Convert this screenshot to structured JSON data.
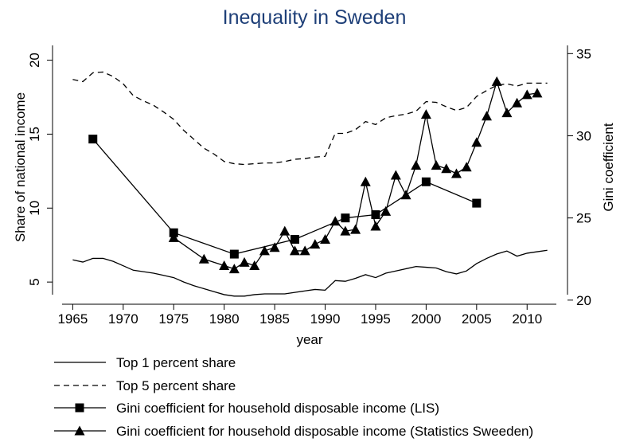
{
  "chart_data": {
    "type": "line",
    "title": "Inequality in Sweden",
    "xlabel": "year",
    "ylabel_left": "Share of national income",
    "ylabel_right": "Gini coefficient",
    "xlim": [
      1963,
      2014
    ],
    "ylim_left": [
      3.5,
      21
    ],
    "ylim_right": [
      19.75,
      35.5
    ],
    "x_ticks": [
      1965,
      1970,
      1975,
      1980,
      1985,
      1990,
      1995,
      2000,
      2005,
      2010
    ],
    "y_ticks_left": [
      5,
      10,
      15,
      20
    ],
    "y_ticks_right": [
      20,
      25,
      30,
      35
    ],
    "grid": false,
    "legend_position": "bottom",
    "series": [
      {
        "name": "Top 1 percent share",
        "axis": "left",
        "style": "solid",
        "points": [
          [
            1965,
            6.5
          ],
          [
            1966,
            6.35
          ],
          [
            1967,
            6.6
          ],
          [
            1968,
            6.6
          ],
          [
            1969,
            6.4
          ],
          [
            1970,
            6.1
          ],
          [
            1971,
            5.8
          ],
          [
            1972,
            5.7
          ],
          [
            1973,
            5.6
          ],
          [
            1974,
            5.45
          ],
          [
            1975,
            5.3
          ],
          [
            1976,
            5.0
          ],
          [
            1977,
            4.75
          ],
          [
            1978,
            4.55
          ],
          [
            1979,
            4.35
          ],
          [
            1980,
            4.15
          ],
          [
            1981,
            4.05
          ],
          [
            1982,
            4.05
          ],
          [
            1983,
            4.15
          ],
          [
            1984,
            4.2
          ],
          [
            1985,
            4.2
          ],
          [
            1986,
            4.2
          ],
          [
            1987,
            4.3
          ],
          [
            1988,
            4.4
          ],
          [
            1989,
            4.5
          ],
          [
            1990,
            4.45
          ],
          [
            1991,
            5.1
          ],
          [
            1992,
            5.05
          ],
          [
            1993,
            5.25
          ],
          [
            1994,
            5.5
          ],
          [
            1995,
            5.3
          ],
          [
            1996,
            5.6
          ],
          [
            1997,
            5.75
          ],
          [
            1998,
            5.9
          ],
          [
            1999,
            6.05
          ],
          [
            2000,
            6.0
          ],
          [
            2001,
            5.95
          ],
          [
            2002,
            5.7
          ],
          [
            2003,
            5.55
          ],
          [
            2004,
            5.75
          ],
          [
            2005,
            6.25
          ],
          [
            2006,
            6.6
          ],
          [
            2007,
            6.9
          ],
          [
            2008,
            7.1
          ],
          [
            2009,
            6.75
          ],
          [
            2010,
            6.95
          ],
          [
            2011,
            7.05
          ],
          [
            2012,
            7.15
          ]
        ]
      },
      {
        "name": "Top 5 percent share",
        "axis": "left",
        "style": "dashed",
        "points": [
          [
            1965,
            18.7
          ],
          [
            1966,
            18.55
          ],
          [
            1967,
            19.15
          ],
          [
            1968,
            19.2
          ],
          [
            1969,
            18.9
          ],
          [
            1970,
            18.4
          ],
          [
            1971,
            17.6
          ],
          [
            1972,
            17.25
          ],
          [
            1973,
            16.95
          ],
          [
            1974,
            16.5
          ],
          [
            1975,
            16.0
          ],
          [
            1976,
            15.25
          ],
          [
            1977,
            14.65
          ],
          [
            1978,
            14.05
          ],
          [
            1979,
            13.65
          ],
          [
            1980,
            13.15
          ],
          [
            1981,
            13.0
          ],
          [
            1982,
            12.95
          ],
          [
            1983,
            13.0
          ],
          [
            1984,
            13.05
          ],
          [
            1985,
            13.05
          ],
          [
            1986,
            13.15
          ],
          [
            1987,
            13.3
          ],
          [
            1988,
            13.35
          ],
          [
            1989,
            13.45
          ],
          [
            1990,
            13.5
          ],
          [
            1991,
            15.05
          ],
          [
            1992,
            15.05
          ],
          [
            1993,
            15.3
          ],
          [
            1994,
            15.85
          ],
          [
            1995,
            15.65
          ],
          [
            1996,
            16.1
          ],
          [
            1997,
            16.25
          ],
          [
            1998,
            16.35
          ],
          [
            1999,
            16.55
          ],
          [
            2000,
            17.2
          ],
          [
            2001,
            17.15
          ],
          [
            2002,
            16.85
          ],
          [
            2003,
            16.6
          ],
          [
            2004,
            16.8
          ],
          [
            2005,
            17.55
          ],
          [
            2006,
            17.95
          ],
          [
            2007,
            18.3
          ],
          [
            2008,
            18.4
          ],
          [
            2009,
            18.25
          ],
          [
            2010,
            18.45
          ],
          [
            2011,
            18.45
          ],
          [
            2012,
            18.45
          ]
        ]
      },
      {
        "name": "Gini coefficient for household disposable income (LIS)",
        "axis": "right",
        "style": "solid-square",
        "points": [
          [
            1967,
            29.8
          ],
          [
            1975,
            24.1
          ],
          [
            1981,
            22.8
          ],
          [
            1987,
            23.7
          ],
          [
            1992,
            25.0
          ],
          [
            1995,
            25.2
          ],
          [
            2000,
            27.2
          ],
          [
            2005,
            25.9
          ]
        ]
      },
      {
        "name": "Gini coefficient for household disposable income (Statistics Sweeden)",
        "axis": "right",
        "style": "solid-triangle",
        "points": [
          [
            1975,
            23.8
          ],
          [
            1978,
            22.5
          ],
          [
            1980,
            22.1
          ],
          [
            1981,
            21.9
          ],
          [
            1982,
            22.3
          ],
          [
            1983,
            22.1
          ],
          [
            1984,
            23.0
          ],
          [
            1985,
            23.2
          ],
          [
            1986,
            24.2
          ],
          [
            1987,
            23.0
          ],
          [
            1988,
            23.0
          ],
          [
            1989,
            23.4
          ],
          [
            1990,
            23.7
          ],
          [
            1991,
            24.8
          ],
          [
            1992,
            24.2
          ],
          [
            1993,
            24.3
          ],
          [
            1994,
            27.2
          ],
          [
            1995,
            24.5
          ],
          [
            1996,
            25.4
          ],
          [
            1997,
            27.6
          ],
          [
            1998,
            26.4
          ],
          [
            1999,
            28.2
          ],
          [
            2000,
            31.3
          ],
          [
            2001,
            28.2
          ],
          [
            2002,
            28.0
          ],
          [
            2003,
            27.7
          ],
          [
            2004,
            28.1
          ],
          [
            2005,
            29.6
          ],
          [
            2006,
            31.2
          ],
          [
            2007,
            33.3
          ],
          [
            2008,
            31.4
          ],
          [
            2009,
            32.0
          ],
          [
            2010,
            32.5
          ],
          [
            2011,
            32.6
          ]
        ]
      }
    ]
  }
}
